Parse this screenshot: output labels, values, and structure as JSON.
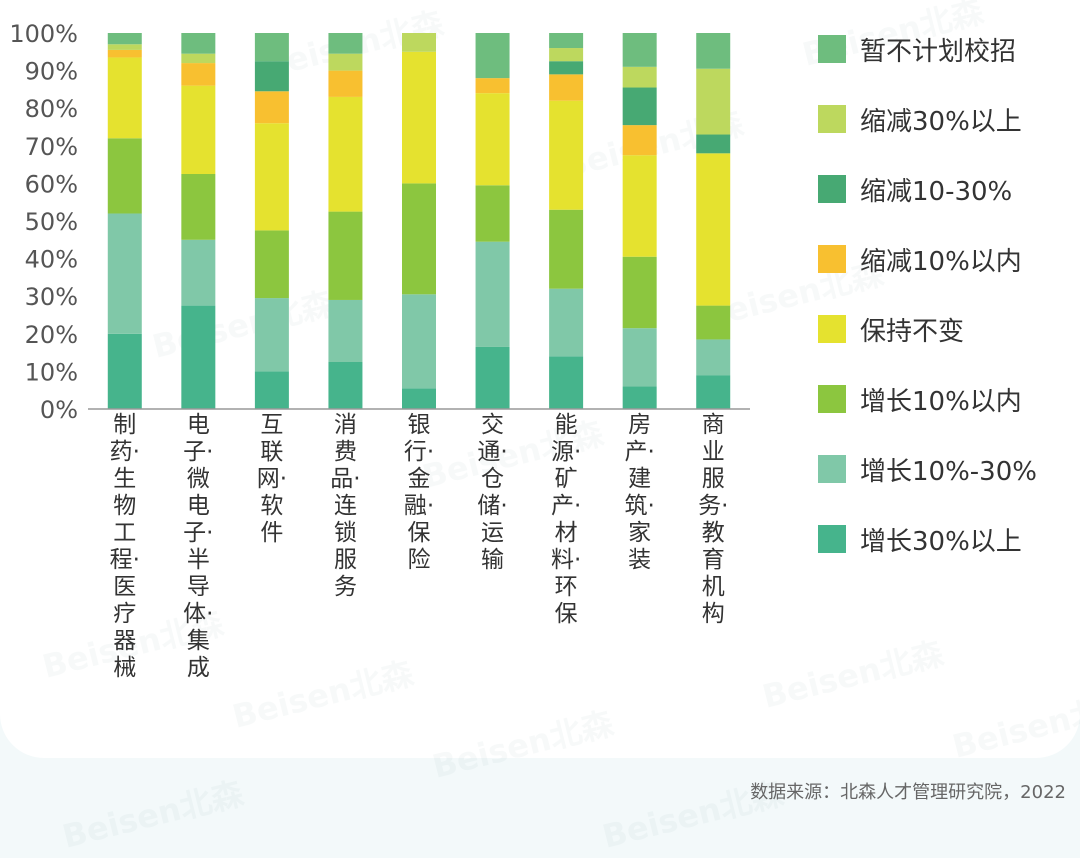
{
  "chart_data": {
    "type": "bar",
    "stacked": true,
    "ylim": [
      0,
      100
    ],
    "yticks": [
      "0%",
      "10%",
      "20%",
      "30%",
      "40%",
      "50%",
      "60%",
      "70%",
      "80%",
      "90%",
      "100%"
    ],
    "categories": [
      "制药·生物工程·医疗器械",
      "电子·微电子·半导体·集成",
      "互联网·软件",
      "消费品·连锁服务",
      "银行·金融·保险",
      "交通·仓储·运输",
      "能源·矿产·材料·环保",
      "房产·建筑·家装",
      "商业服务·教育机构"
    ],
    "series": [
      {
        "name": "增长30%以上",
        "color": "#46b48c",
        "values": [
          20,
          27.5,
          10,
          12.5,
          5.5,
          16.5,
          14,
          6,
          9
        ]
      },
      {
        "name": "增长10%-30%",
        "color": "#80c8a8",
        "values": [
          32,
          17.5,
          19.5,
          16.5,
          25,
          28,
          18,
          15.5,
          9.5
        ]
      },
      {
        "name": "增长10%以内",
        "color": "#8cc63f",
        "values": [
          20,
          17.5,
          18,
          23.5,
          29.5,
          15,
          21,
          19,
          9
        ]
      },
      {
        "name": "保持不变",
        "color": "#e5e22f",
        "values": [
          21.5,
          23.5,
          28.5,
          30.5,
          35,
          24.5,
          29,
          27,
          40.5
        ]
      },
      {
        "name": "缩减10%以内",
        "color": "#f8c030",
        "values": [
          2,
          6,
          8.5,
          7,
          0,
          4,
          7,
          8,
          0
        ]
      },
      {
        "name": "缩减10-30%",
        "color": "#47a973",
        "values": [
          0,
          0,
          8,
          0,
          0,
          0,
          3.5,
          10,
          5
        ]
      },
      {
        "name": "缩减30%以上",
        "color": "#bdd85e",
        "values": [
          1.5,
          2.5,
          0,
          4.5,
          5,
          0,
          3.5,
          5.5,
          17.5
        ]
      },
      {
        "name": "暂不计划校招",
        "color": "#6ebd7e",
        "values": [
          3,
          5.5,
          7.5,
          5.5,
          0,
          12,
          4,
          9,
          9.5
        ]
      }
    ],
    "legend_order": [
      "暂不计划校招",
      "缩减30%以上",
      "缩减10-30%",
      "缩减10%以内",
      "保持不变",
      "增长10%以内",
      "增长10%-30%",
      "增长30%以上"
    ],
    "legend_position": "right"
  },
  "source": "数据来源：北森人才管理研究院，2022",
  "watermark": "Beisen北森"
}
